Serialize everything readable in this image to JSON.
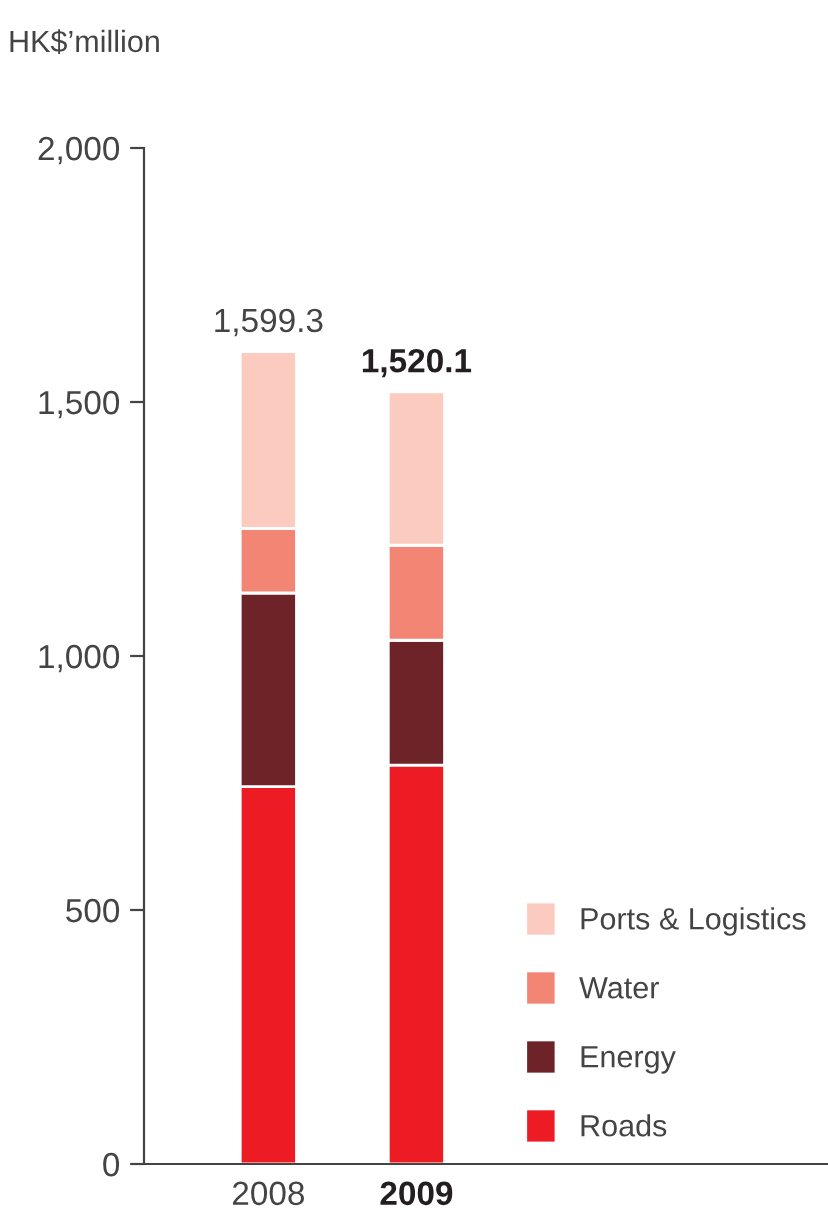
{
  "chart_data": {
    "type": "bar",
    "stacked": true,
    "ylabel": "HK$’million",
    "categories": [
      "2008",
      "2009"
    ],
    "series": [
      {
        "name": "Roads",
        "color": "#ed1c24",
        "values": [
          743,
          785
        ]
      },
      {
        "name": "Energy",
        "color": "#6d2327",
        "values": [
          381,
          246
        ]
      },
      {
        "name": "Water",
        "color": "#f28573",
        "values": [
          127,
          187
        ]
      },
      {
        "name": "Ports & Logistics",
        "color": "#fccbc0",
        "values": [
          348.3,
          302.1
        ]
      }
    ],
    "totals": [
      "1,599.3",
      "1,520.1"
    ],
    "ylim": [
      0,
      2000
    ],
    "yticks": [
      {
        "value": 0,
        "label": "0"
      },
      {
        "value": 500,
        "label": "500"
      },
      {
        "value": 1000,
        "label": "1,000"
      },
      {
        "value": 1500,
        "label": "1,500"
      },
      {
        "value": 2000,
        "label": "2,000"
      }
    ],
    "grid": false,
    "legend": "bottom right"
  }
}
